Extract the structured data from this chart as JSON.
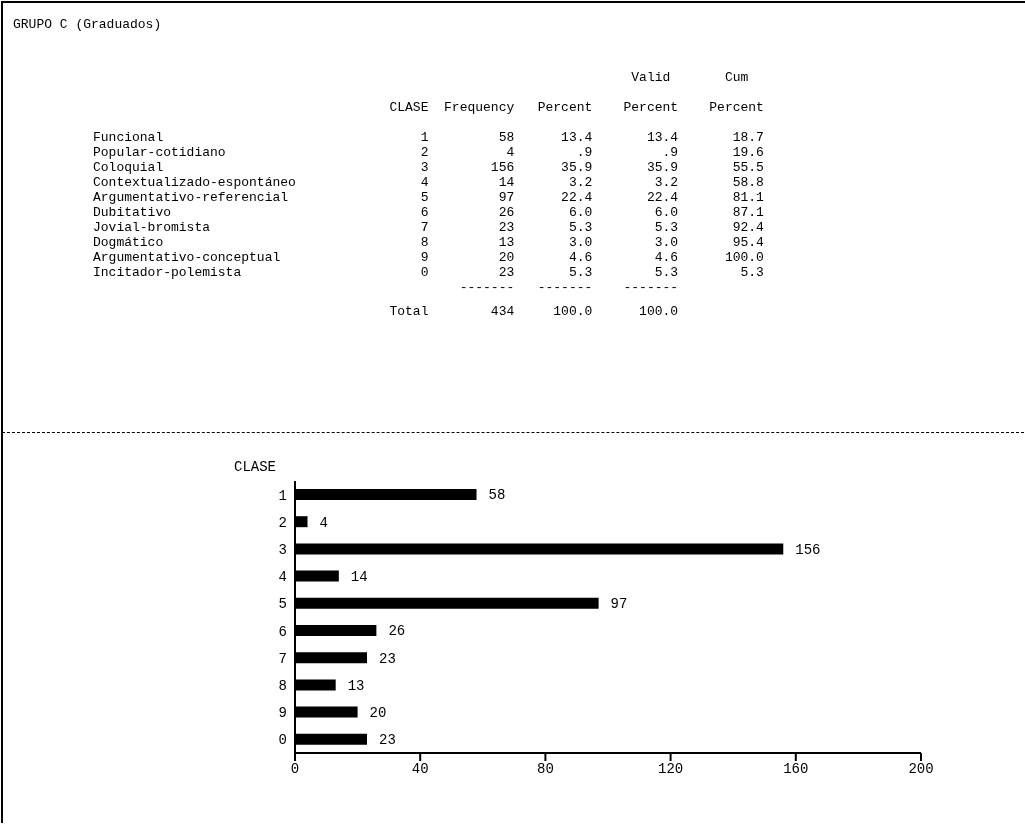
{
  "chart_data": [
    {
      "type": "other",
      "title": "GRUPO C (Graduados)",
      "annotations": [
        "                                                                     Valid       Cum",
        "                                      CLASE  Frequency   Percent    Percent    Percent",
        "Funcional                                 1         58      13.4       13.4       18.7",
        "Popular-cotidiano                         2          4        .9         .9       19.6",
        "Coloquial                                 3        156      35.9       35.9       55.5",
        "Contextualizado-espontáneo                4         14       3.2        3.2       58.8",
        "Argumentativo-referencial                 5         97      22.4       22.4       81.1",
        "Dubitativo                                6         26       6.0        6.0       87.1",
        "Jovial-bromista                           7         23       5.3        5.3       92.4",
        "Dogmático                                 8         13       3.0        3.0       95.4",
        "Argumentativo-conceptual                  9         20       4.6        4.6      100.0",
        "Incitador-polemista                       0         23       5.3        5.3        5.3",
        "                                               -------   -------    -------",
        "                                      Total        434     100.0      100.0"
      ]
    },
    {
      "type": "bar",
      "orientation": "horizontal",
      "ylabel": "CLASE",
      "categories": [
        "1",
        "2",
        "3",
        "4",
        "5",
        "6",
        "7",
        "8",
        "9",
        "0"
      ],
      "values": [
        58,
        4,
        156,
        14,
        97,
        26,
        23,
        13,
        20,
        23
      ],
      "color": "#000000",
      "xlim": [
        0,
        200
      ],
      "xticks": [
        0,
        40,
        80,
        120,
        160,
        200
      ],
      "data_labels": true
    }
  ]
}
